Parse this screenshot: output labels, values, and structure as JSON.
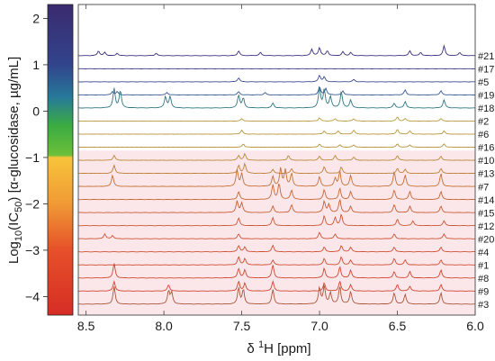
{
  "chart_data": {
    "type": "line",
    "title": "",
    "xlabel": {
      "prefix": "δ ",
      "sup": "1",
      "main": "H [ppm]"
    },
    "ylabel": {
      "a": "Log",
      "b": "10",
      "c": "(IC",
      "d": "50",
      "e": ") [α-glucosidase, µg/mL]"
    },
    "x_range": [
      8.55,
      6.0
    ],
    "x_ticks": [
      8.5,
      8.0,
      7.5,
      7.0,
      6.5,
      6.0
    ],
    "x_tick_labels": [
      "8.5",
      "8.0",
      "7.5",
      "7.0",
      "6.5",
      "6.0"
    ],
    "y_range": [
      -4.4,
      2.3
    ],
    "y_ticks": [
      2,
      1,
      0,
      -1,
      -2,
      -3,
      -4
    ],
    "y_tick_labels": [
      "2",
      "1",
      "0",
      "−1",
      "−2",
      "−3",
      "−4"
    ],
    "colorbar": {
      "stops": [
        {
          "value": 2.3,
          "color": "#3b2a6e"
        },
        {
          "value": 1.0,
          "color": "#31448c"
        },
        {
          "value": 0.3,
          "color": "#27799a"
        },
        {
          "value": -0.3,
          "color": "#3aab42"
        },
        {
          "value": -0.95,
          "color": "#6cbf3a"
        },
        {
          "value": -1.0,
          "color": "#f7c43a"
        },
        {
          "value": -2.0,
          "color": "#f09a35"
        },
        {
          "value": -3.0,
          "color": "#e6502a"
        },
        {
          "value": -4.4,
          "color": "#d62d25"
        }
      ]
    },
    "highlight_band": {
      "from_label": "#10",
      "color": "#fbe7ea"
    },
    "series": [
      {
        "name": "#21",
        "color": "#3a2f7f",
        "peaks": [
          [
            8.42,
            6
          ],
          [
            8.38,
            4
          ],
          [
            8.3,
            3
          ],
          [
            8.05,
            3
          ],
          [
            7.52,
            6
          ],
          [
            7.38,
            4
          ],
          [
            7.05,
            8
          ],
          [
            7.0,
            10
          ],
          [
            6.95,
            6
          ],
          [
            6.85,
            5
          ],
          [
            6.8,
            4
          ],
          [
            6.42,
            6
          ],
          [
            6.35,
            4
          ],
          [
            6.2,
            12
          ],
          [
            6.1,
            4
          ]
        ]
      },
      {
        "name": "#17",
        "color": "#3b3a86",
        "peaks": []
      },
      {
        "name": "#5",
        "color": "#3a4a8f",
        "peaks": [
          [
            7.52,
            5
          ],
          [
            7.0,
            8
          ],
          [
            6.97,
            6
          ],
          [
            6.78,
            3
          ]
        ]
      },
      {
        "name": "#19",
        "color": "#35578f",
        "peaks": [
          [
            8.33,
            4
          ],
          [
            8.3,
            4
          ],
          [
            7.98,
            3
          ],
          [
            7.52,
            4
          ],
          [
            7.35,
            3
          ],
          [
            7.0,
            10
          ],
          [
            6.96,
            8
          ],
          [
            6.85,
            5
          ],
          [
            6.45,
            6
          ],
          [
            6.22,
            5
          ]
        ]
      },
      {
        "name": "#18",
        "color": "#2f7680",
        "peaks": [
          [
            8.32,
            24
          ],
          [
            8.28,
            22
          ],
          [
            7.99,
            14
          ],
          [
            7.96,
            14
          ],
          [
            7.52,
            16
          ],
          [
            7.49,
            12
          ],
          [
            7.3,
            6
          ],
          [
            7.0,
            24
          ],
          [
            6.97,
            22
          ],
          [
            6.93,
            14
          ],
          [
            6.86,
            20
          ],
          [
            6.8,
            10
          ],
          [
            6.52,
            6
          ],
          [
            6.45,
            8
          ],
          [
            6.2,
            10
          ]
        ]
      },
      {
        "name": "#2",
        "color": "#b79a3c",
        "peaks": [
          [
            7.5,
            3
          ],
          [
            7.0,
            4
          ],
          [
            6.9,
            3
          ],
          [
            6.78,
            3
          ],
          [
            6.5,
            5
          ],
          [
            6.45,
            3
          ],
          [
            6.22,
            3
          ]
        ]
      },
      {
        "name": "#6",
        "color": "#b8963a",
        "peaks": [
          [
            7.5,
            5
          ],
          [
            6.97,
            4
          ],
          [
            6.88,
            4
          ],
          [
            6.78,
            5
          ],
          [
            6.5,
            6
          ],
          [
            6.42,
            4
          ],
          [
            6.2,
            4
          ]
        ]
      },
      {
        "name": "#16",
        "color": "#b89038",
        "peaks": [
          [
            7.49,
            4
          ],
          [
            7.0,
            4
          ],
          [
            6.87,
            3
          ],
          [
            6.78,
            3
          ],
          [
            6.5,
            4
          ],
          [
            6.42,
            3
          ],
          [
            6.2,
            4
          ]
        ]
      },
      {
        "name": "#10",
        "color": "#b98a37",
        "peaks": [
          [
            8.32,
            6
          ],
          [
            7.52,
            6
          ],
          [
            7.48,
            8
          ],
          [
            7.2,
            6
          ],
          [
            7.0,
            5
          ],
          [
            6.9,
            6
          ],
          [
            6.78,
            4
          ],
          [
            6.5,
            6
          ],
          [
            6.22,
            5
          ]
        ]
      },
      {
        "name": "#13",
        "color": "#bb7f37",
        "peaks": [
          [
            8.32,
            10
          ],
          [
            7.52,
            10
          ],
          [
            7.48,
            12
          ],
          [
            7.3,
            5
          ],
          [
            7.18,
            6
          ],
          [
            6.97,
            8
          ],
          [
            6.86,
            8
          ],
          [
            6.5,
            6
          ],
          [
            6.45,
            5
          ],
          [
            6.22,
            6
          ]
        ]
      },
      {
        "name": "#7",
        "color": "#c57035",
        "peaks": [
          [
            8.33,
            14
          ],
          [
            7.53,
            20
          ],
          [
            7.5,
            16
          ],
          [
            7.3,
            12
          ],
          [
            7.25,
            22
          ],
          [
            7.22,
            20
          ],
          [
            7.18,
            16
          ],
          [
            7.0,
            12
          ],
          [
            6.9,
            10
          ],
          [
            6.87,
            18
          ],
          [
            6.8,
            14
          ],
          [
            6.52,
            18
          ],
          [
            6.45,
            14
          ],
          [
            6.22,
            16
          ]
        ]
      },
      {
        "name": "#14",
        "color": "#c86534",
        "peaks": [
          [
            7.52,
            10
          ],
          [
            7.3,
            18
          ],
          [
            7.26,
            20
          ],
          [
            7.18,
            12
          ],
          [
            6.97,
            12
          ],
          [
            6.87,
            14
          ],
          [
            6.8,
            10
          ],
          [
            6.52,
            12
          ],
          [
            6.42,
            10
          ],
          [
            6.22,
            10
          ]
        ]
      },
      {
        "name": "#15",
        "color": "#c95d33",
        "peaks": [
          [
            7.53,
            14
          ],
          [
            7.5,
            12
          ],
          [
            7.3,
            8
          ],
          [
            7.18,
            10
          ],
          [
            6.97,
            14
          ],
          [
            6.94,
            10
          ],
          [
            6.87,
            16
          ],
          [
            6.8,
            8
          ],
          [
            6.52,
            10
          ],
          [
            6.42,
            8
          ],
          [
            6.22,
            8
          ]
        ]
      },
      {
        "name": "#12",
        "color": "#cb5632",
        "peaks": [
          [
            7.52,
            10
          ],
          [
            7.3,
            10
          ],
          [
            6.97,
            12
          ],
          [
            6.9,
            10
          ],
          [
            6.86,
            14
          ],
          [
            6.5,
            8
          ],
          [
            6.4,
            6
          ],
          [
            6.2,
            6
          ]
        ]
      },
      {
        "name": "#20",
        "color": "#cc5231",
        "peaks": [
          [
            8.38,
            6
          ],
          [
            8.33,
            4
          ],
          [
            7.52,
            6
          ],
          [
            7.0,
            8
          ],
          [
            6.9,
            6
          ],
          [
            6.52,
            6
          ],
          [
            6.2,
            6
          ]
        ]
      },
      {
        "name": "#4",
        "color": "#cd4e30",
        "peaks": [
          [
            7.52,
            8
          ],
          [
            7.48,
            6
          ],
          [
            7.3,
            8
          ],
          [
            6.97,
            6
          ],
          [
            6.86,
            8
          ],
          [
            6.8,
            6
          ],
          [
            6.52,
            6
          ],
          [
            6.22,
            6
          ]
        ]
      },
      {
        "name": "#1",
        "color": "#cf4a2f",
        "peaks": [
          [
            7.52,
            10
          ],
          [
            7.48,
            8
          ],
          [
            7.3,
            6
          ],
          [
            6.97,
            8
          ],
          [
            6.86,
            10
          ],
          [
            6.8,
            6
          ],
          [
            6.52,
            8
          ],
          [
            6.45,
            6
          ],
          [
            6.22,
            6
          ]
        ]
      },
      {
        "name": "#8",
        "color": "#d0462e",
        "peaks": [
          [
            8.32,
            18
          ],
          [
            7.52,
            12
          ],
          [
            7.48,
            10
          ],
          [
            7.3,
            16
          ],
          [
            6.97,
            12
          ],
          [
            6.87,
            14
          ],
          [
            6.8,
            10
          ],
          [
            6.52,
            8
          ],
          [
            6.42,
            8
          ],
          [
            6.22,
            10
          ]
        ]
      },
      {
        "name": "#9",
        "color": "#d1432d",
        "peaks": [
          [
            8.32,
            12
          ],
          [
            7.97,
            8
          ],
          [
            7.52,
            12
          ],
          [
            7.48,
            10
          ],
          [
            7.3,
            12
          ],
          [
            6.97,
            10
          ],
          [
            6.87,
            12
          ],
          [
            6.8,
            8
          ],
          [
            6.5,
            8
          ],
          [
            6.42,
            6
          ],
          [
            6.22,
            8
          ]
        ]
      },
      {
        "name": "#3",
        "color": "#a8553a",
        "peaks": [
          [
            8.32,
            22
          ],
          [
            7.97,
            16
          ],
          [
            7.95,
            14
          ],
          [
            7.52,
            20
          ],
          [
            7.49,
            18
          ],
          [
            7.3,
            18
          ],
          [
            7.0,
            20
          ],
          [
            6.97,
            22
          ],
          [
            6.93,
            14
          ],
          [
            6.87,
            22
          ],
          [
            6.8,
            16
          ],
          [
            6.52,
            14
          ],
          [
            6.45,
            12
          ],
          [
            6.22,
            14
          ]
        ]
      }
    ]
  }
}
